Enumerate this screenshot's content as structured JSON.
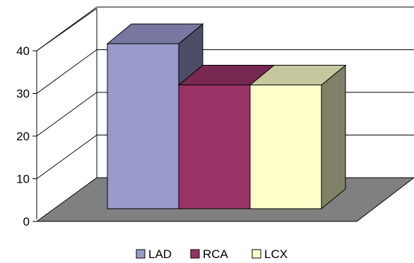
{
  "chart_data": {
    "type": "bar",
    "title": "",
    "xlabel": "",
    "ylabel": "",
    "ylim": [
      0,
      40
    ],
    "yticks": [
      "0",
      "10",
      "20",
      "30",
      "40"
    ],
    "grid": true,
    "style": "3d",
    "legend_position": "bottom",
    "series": [
      {
        "name": "LAD",
        "value": 40,
        "color": "#9999cc"
      },
      {
        "name": "RCA",
        "value": 30,
        "color": "#993366"
      },
      {
        "name": "LCX",
        "value": 30,
        "color": "#ffffcc"
      }
    ]
  }
}
